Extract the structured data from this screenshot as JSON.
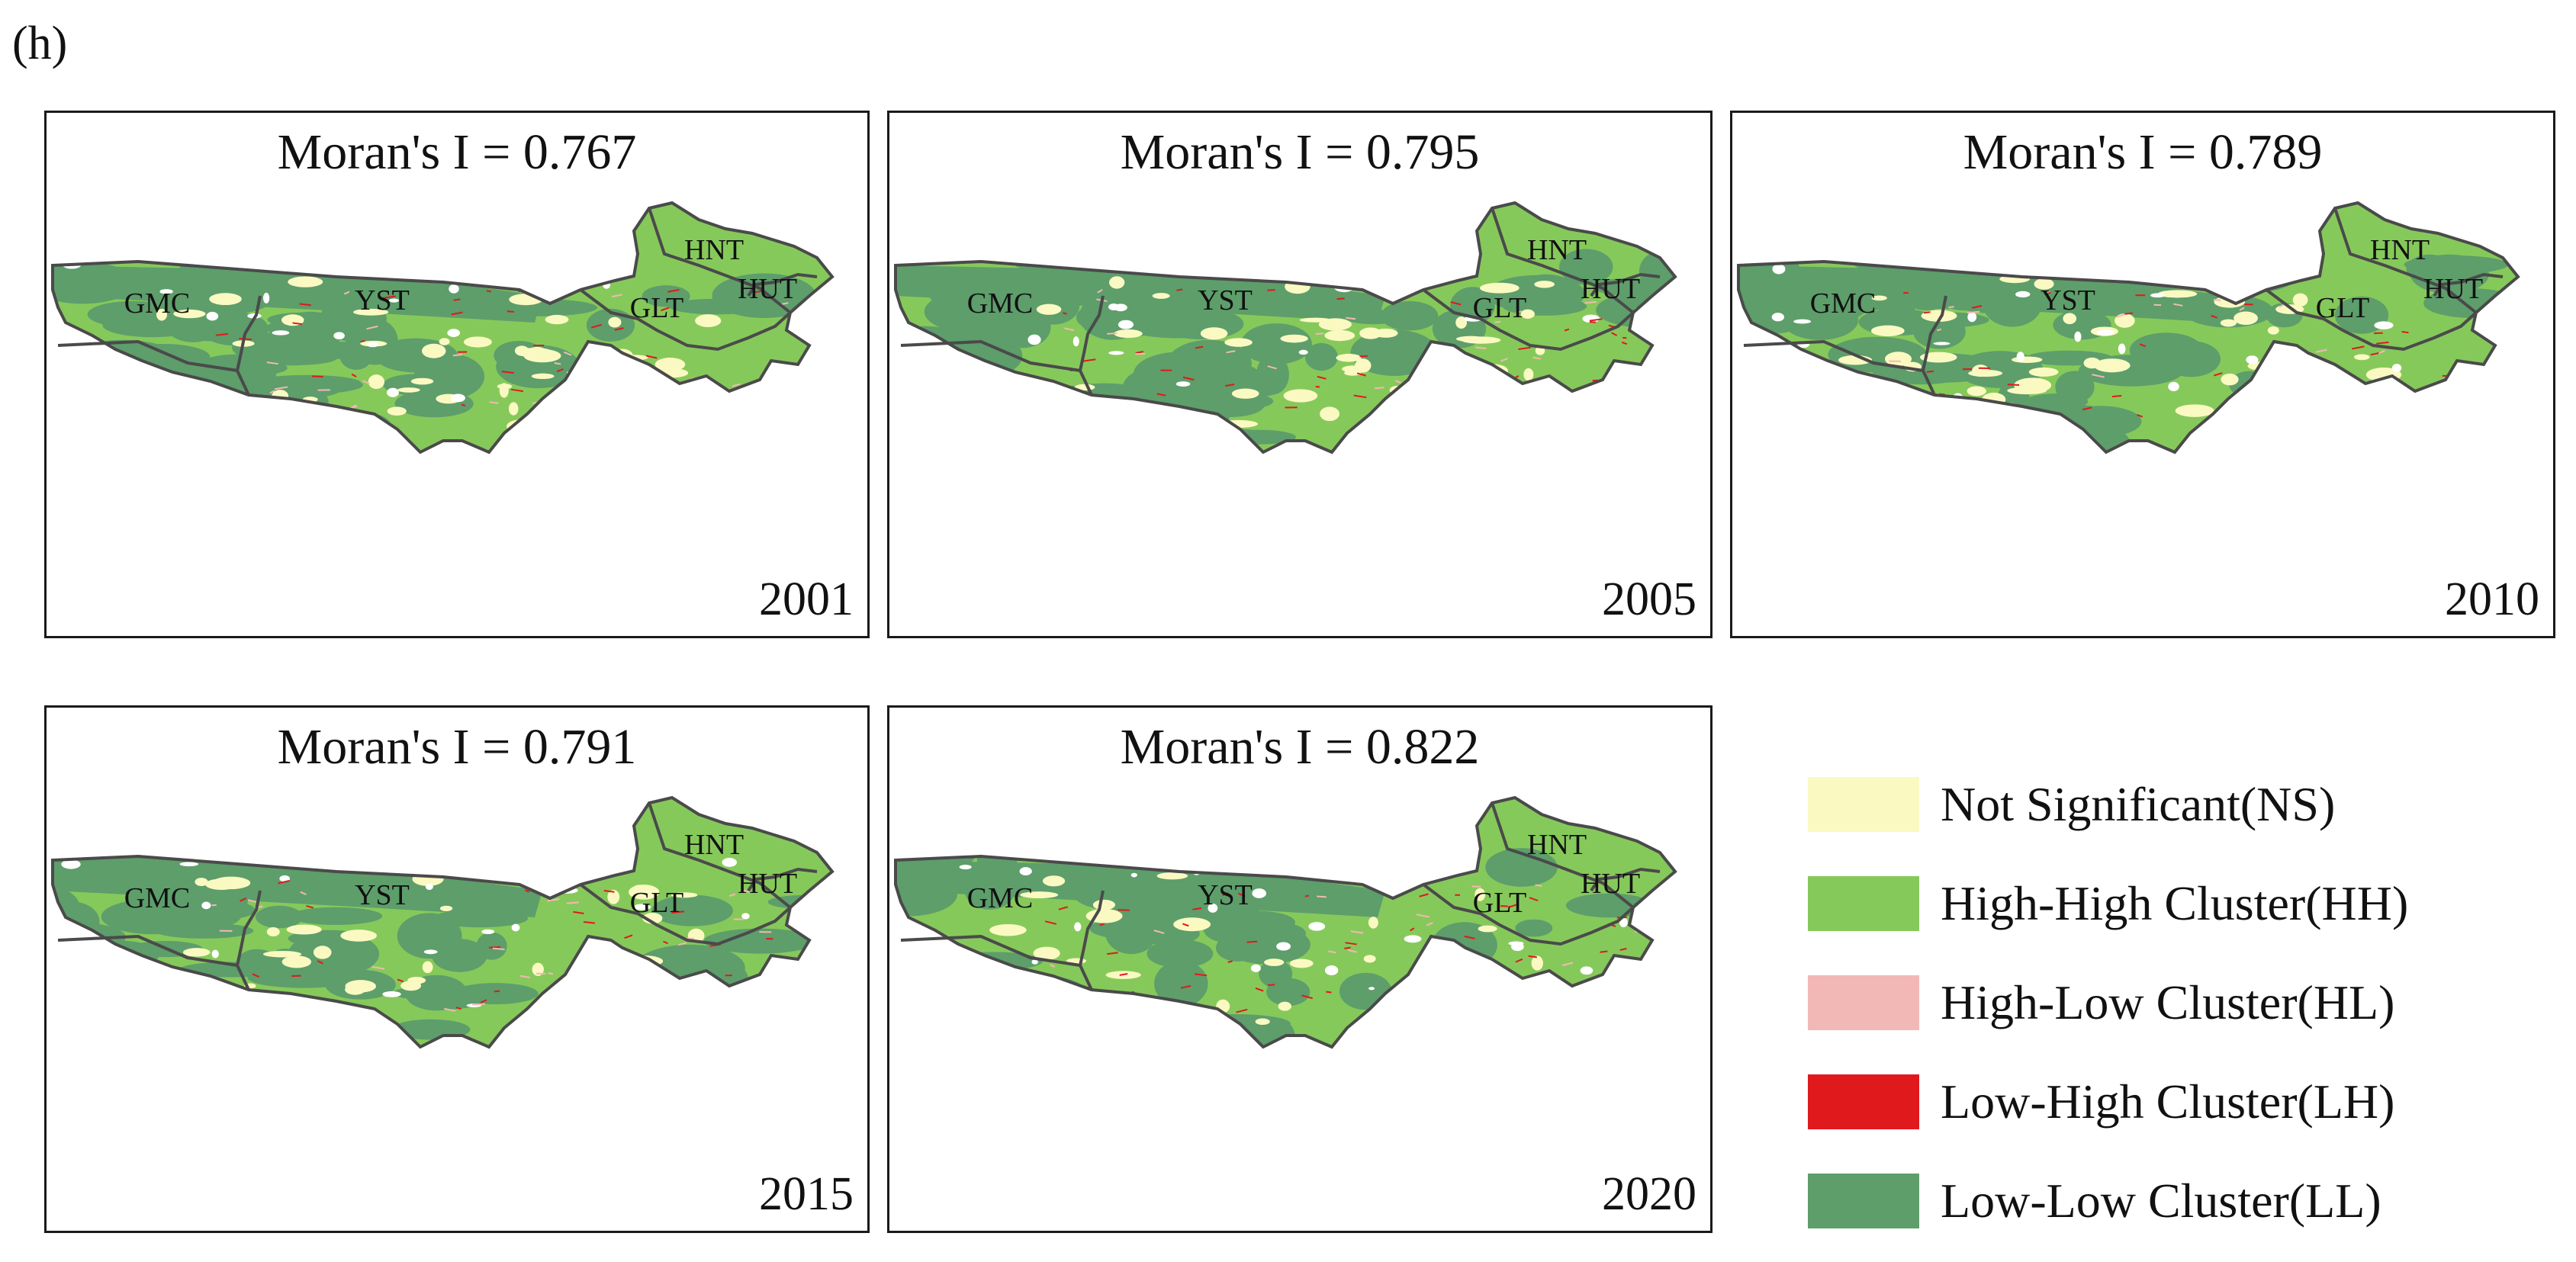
{
  "figure_label": "(h)",
  "colors": {
    "NS": "#fbf9c2",
    "HH": "#86c95b",
    "HL": "#f2b8b5",
    "LH": "#e0191c",
    "LL": "#5d9e6b",
    "boundary": "#4a4a4a"
  },
  "panels": [
    {
      "title": "Moran's I = 0.767",
      "year": "2001",
      "moran_i": 0.767
    },
    {
      "title": "Moran's I = 0.795",
      "year": "2005",
      "moran_i": 0.795
    },
    {
      "title": "Moran's I = 0.789",
      "year": "2010",
      "moran_i": 0.789
    },
    {
      "title": "Moran's I = 0.791",
      "year": "2015",
      "moran_i": 0.791
    },
    {
      "title": "Moran's I = 0.822",
      "year": "2020",
      "moran_i": 0.822
    }
  ],
  "regions": [
    "GMC",
    "YST",
    "GLT",
    "HNT",
    "HUT"
  ],
  "legend": [
    {
      "label": "Not Significant(NS)",
      "color_key": "NS"
    },
    {
      "label": "High-High Cluster(HH)",
      "color_key": "HH"
    },
    {
      "label": "High-Low Cluster(HL)",
      "color_key": "HL"
    },
    {
      "label": "Low-High Cluster(LH)",
      "color_key": "LH"
    },
    {
      "label": "Low-Low Cluster(LL)",
      "color_key": "LL"
    }
  ]
}
